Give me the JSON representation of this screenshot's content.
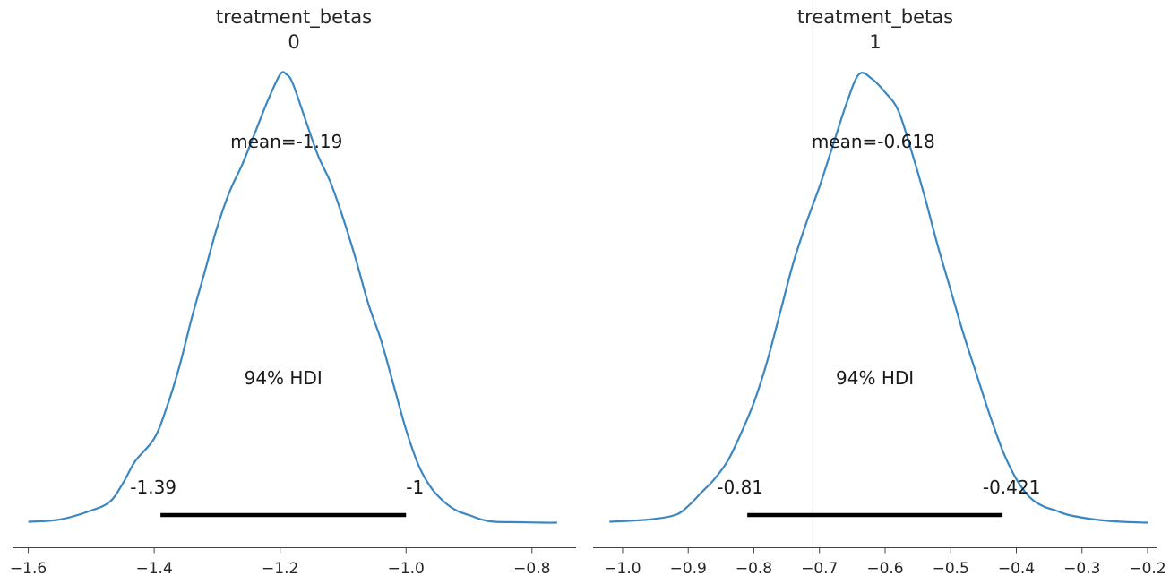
{
  "colors": {
    "density": "#3b87c2",
    "hdi": "#000000",
    "axis": "#444444",
    "text": "#262626"
  },
  "chart_data": [
    {
      "type": "line",
      "title": "treatment_betas",
      "subtitle": "0",
      "mean_label": "mean=-1.19",
      "hdi_label": "94% HDI",
      "hdi_low_label": "-1.39",
      "hdi_high_label": "-1",
      "mean": -1.19,
      "hdi": [
        -1.39,
        -1.0
      ],
      "xlim": [
        -1.625,
        -0.73
      ],
      "ylim": [
        0,
        1.0
      ],
      "xticks": [
        -1.6,
        -1.4,
        -1.2,
        -1.0,
        -0.8
      ],
      "xtick_labels": [
        "−1.6",
        "−1.4",
        "−1.2",
        "−1.0",
        "−0.8"
      ],
      "grid": false,
      "series": [
        {
          "x": [
            -1.6,
            -1.55,
            -1.5,
            -1.47,
            -1.45,
            -1.43,
            -1.4,
            -1.38,
            -1.36,
            -1.34,
            -1.32,
            -1.3,
            -1.28,
            -1.26,
            -1.24,
            -1.22,
            -1.2,
            -1.19,
            -1.18,
            -1.16,
            -1.14,
            -1.12,
            -1.1,
            -1.08,
            -1.06,
            -1.04,
            -1.02,
            -1.0,
            -0.98,
            -0.96,
            -0.94,
            -0.92,
            -0.9,
            -0.88,
            -0.86,
            -0.82,
            -0.78,
            -0.76
          ],
          "y": [
            0.005,
            0.01,
            0.03,
            0.05,
            0.09,
            0.14,
            0.19,
            0.26,
            0.35,
            0.46,
            0.56,
            0.66,
            0.74,
            0.8,
            0.87,
            0.94,
            1.0,
            1.0,
            0.98,
            0.9,
            0.82,
            0.76,
            0.68,
            0.59,
            0.49,
            0.41,
            0.31,
            0.21,
            0.13,
            0.08,
            0.05,
            0.03,
            0.02,
            0.01,
            0.005,
            0.004,
            0.003,
            0.003
          ]
        }
      ]
    },
    {
      "type": "line",
      "title": "treatment_betas",
      "subtitle": "1",
      "mean_label": "mean=-0.618",
      "hdi_label": "94% HDI",
      "hdi_low_label": "-0.81",
      "hdi_high_label": "-0.421",
      "mean": -0.618,
      "hdi": [
        -0.81,
        -0.421
      ],
      "xlim": [
        -1.045,
        -0.185
      ],
      "ylim": [
        0,
        1.0
      ],
      "xticks": [
        -1.0,
        -0.9,
        -0.8,
        -0.7,
        -0.6,
        -0.5,
        -0.4,
        -0.3,
        -0.2
      ],
      "xtick_labels": [
        "−1.0",
        "−0.9",
        "−0.8",
        "−0.7",
        "−0.6",
        "−0.5",
        "−0.4",
        "−0.3",
        "−0.2"
      ],
      "grid": false,
      "series": [
        {
          "x": [
            -1.02,
            -0.96,
            -0.92,
            -0.9,
            -0.88,
            -0.86,
            -0.84,
            -0.82,
            -0.8,
            -0.78,
            -0.76,
            -0.74,
            -0.72,
            -0.7,
            -0.68,
            -0.66,
            -0.64,
            -0.62,
            -0.6,
            -0.58,
            -0.56,
            -0.54,
            -0.52,
            -0.5,
            -0.48,
            -0.46,
            -0.44,
            -0.42,
            -0.4,
            -0.38,
            -0.36,
            -0.34,
            -0.32,
            -0.28,
            -0.24,
            -0.2
          ],
          "y": [
            0.005,
            0.01,
            0.02,
            0.04,
            0.07,
            0.1,
            0.14,
            0.2,
            0.27,
            0.36,
            0.47,
            0.58,
            0.67,
            0.75,
            0.84,
            0.93,
            1.0,
            0.99,
            0.96,
            0.92,
            0.83,
            0.73,
            0.62,
            0.52,
            0.42,
            0.33,
            0.24,
            0.16,
            0.1,
            0.06,
            0.04,
            0.03,
            0.02,
            0.01,
            0.005,
            0.003
          ]
        }
      ]
    }
  ]
}
